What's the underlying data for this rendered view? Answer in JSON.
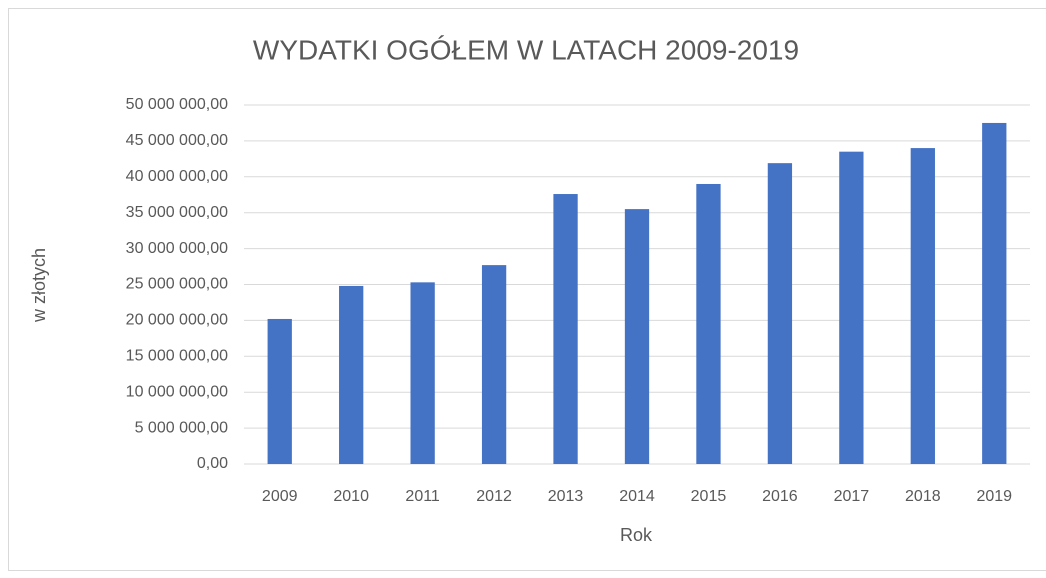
{
  "chart_data": {
    "type": "bar",
    "title": "WYDATKI OGÓŁEM W LATACH 2009-2019",
    "x_label": "Rok",
    "y_label": "w złotych",
    "categories": [
      "2009",
      "2010",
      "2011",
      "2012",
      "2013",
      "2014",
      "2015",
      "2016",
      "2017",
      "2018",
      "2019"
    ],
    "values": [
      20200000,
      24800000,
      25300000,
      27700000,
      37600000,
      35500000,
      39000000,
      41900000,
      43500000,
      44000000,
      47500000
    ],
    "color": "#4472c4",
    "ylim": [
      0,
      50000000
    ],
    "yticks": [
      {
        "value": 0,
        "label": "0,00"
      },
      {
        "value": 5000000,
        "label": "5 000 000,00"
      },
      {
        "value": 10000000,
        "label": "10 000 000,00"
      },
      {
        "value": 15000000,
        "label": "15 000 000,00"
      },
      {
        "value": 20000000,
        "label": "20 000 000,00"
      },
      {
        "value": 25000000,
        "label": "25 000 000,00"
      },
      {
        "value": 30000000,
        "label": "30 000 000,00"
      },
      {
        "value": 35000000,
        "label": "35 000 000,00"
      },
      {
        "value": 40000000,
        "label": "40 000 000,00"
      },
      {
        "value": 45000000,
        "label": "45 000 000,00"
      },
      {
        "value": 50000000,
        "label": "50 000 000,00"
      }
    ],
    "grid": true
  }
}
